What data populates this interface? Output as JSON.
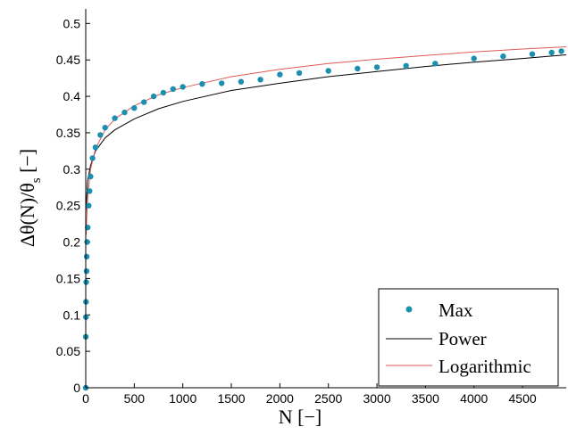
{
  "chart_data": {
    "type": "scatter",
    "xlabel": "N [−]",
    "ylabel": {
      "main": "Δθ(N)/θ",
      "sub": "s",
      "unit": " [−]"
    },
    "xlim": [
      0,
      4950
    ],
    "ylim": [
      0,
      0.52
    ],
    "xticks": [
      0,
      500,
      1000,
      1500,
      2000,
      2500,
      3000,
      3500,
      4000,
      4500
    ],
    "yticks": [
      0,
      0.05,
      0.1,
      0.15,
      0.2,
      0.25,
      0.3,
      0.35,
      0.4,
      0.45,
      0.5
    ],
    "xtick_labels": [
      "0",
      "500",
      "1000",
      "1500",
      "2000",
      "2500",
      "3000",
      "3500",
      "4000",
      "4500"
    ],
    "ytick_labels": [
      "0",
      "0.05",
      "0.1",
      "0.15",
      "0.2",
      "0.25",
      "0.3",
      "0.35",
      "0.4",
      "0.45",
      "0.5"
    ],
    "grid": false,
    "legend_position": "bottom-right",
    "series": [
      {
        "name": "Max",
        "style": "markers",
        "color": "#1a8fb0",
        "x": [
          0,
          1,
          2,
          3,
          5,
          8,
          10,
          15,
          20,
          30,
          40,
          50,
          70,
          100,
          150,
          200,
          300,
          400,
          500,
          600,
          700,
          800,
          900,
          1000,
          1200,
          1400,
          1600,
          1800,
          2000,
          2200,
          2500,
          2800,
          3000,
          3300,
          3600,
          4000,
          4300,
          4600,
          4800,
          4900
        ],
        "y": [
          0,
          0.07,
          0.097,
          0.118,
          0.145,
          0.16,
          0.18,
          0.2,
          0.22,
          0.25,
          0.27,
          0.29,
          0.315,
          0.33,
          0.347,
          0.357,
          0.37,
          0.378,
          0.384,
          0.392,
          0.4,
          0.405,
          0.41,
          0.413,
          0.417,
          0.418,
          0.42,
          0.423,
          0.43,
          0.432,
          0.435,
          0.438,
          0.44,
          0.442,
          0.445,
          0.452,
          0.455,
          0.458,
          0.46,
          0.462
        ]
      },
      {
        "name": "Power",
        "style": "line",
        "color": "#000000",
        "x": [
          0,
          20,
          50,
          100,
          200,
          300,
          500,
          750,
          1000,
          1500,
          2000,
          2500,
          3000,
          3500,
          4000,
          4500,
          4950
        ],
        "y": [
          0.24,
          0.285,
          0.305,
          0.325,
          0.343,
          0.354,
          0.369,
          0.383,
          0.393,
          0.408,
          0.418,
          0.427,
          0.434,
          0.441,
          0.447,
          0.452,
          0.457
        ]
      },
      {
        "name": "Logarithmic",
        "style": "line",
        "color": "#e05a5a",
        "x": [
          5,
          10,
          20,
          50,
          100,
          200,
          300,
          500,
          750,
          1000,
          1500,
          2000,
          2500,
          3000,
          3500,
          4000,
          4500,
          4950
        ],
        "y": [
          0.21,
          0.233,
          0.261,
          0.3,
          0.328,
          0.354,
          0.369,
          0.387,
          0.402,
          0.412,
          0.427,
          0.437,
          0.445,
          0.451,
          0.456,
          0.461,
          0.465,
          0.468
        ]
      }
    ]
  }
}
